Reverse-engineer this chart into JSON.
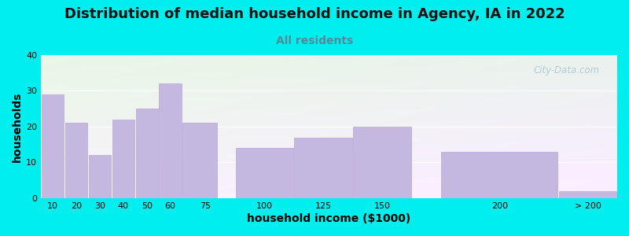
{
  "title": "Distribution of median household income in Agency, IA in 2022",
  "subtitle": "All residents",
  "xlabel": "household income ($1000)",
  "ylabel": "households",
  "bg_color": "#00EEEE",
  "bar_color": "#c5b8e0",
  "bar_edge_color": "#b8a8d8",
  "categories": [
    "10",
    "20",
    "30",
    "40",
    "50",
    "60",
    "75",
    "100",
    "125",
    "150",
    "200",
    "> 200"
  ],
  "values": [
    29,
    21,
    12,
    22,
    25,
    32,
    21,
    14,
    17,
    20,
    13,
    2
  ],
  "bar_lefts": [
    5,
    15,
    25,
    35,
    45,
    55,
    65,
    87.5,
    112.5,
    137.5,
    175,
    225
  ],
  "bar_widths": [
    10,
    10,
    10,
    10,
    10,
    10,
    15,
    25,
    25,
    25,
    50,
    25
  ],
  "xlim": [
    5,
    250
  ],
  "ylim": [
    0,
    40
  ],
  "yticks": [
    0,
    10,
    20,
    30,
    40
  ],
  "xtick_positions": [
    10,
    20,
    30,
    40,
    50,
    60,
    75,
    100,
    125,
    150,
    200,
    237.5
  ],
  "xtick_labels": [
    "10",
    "20",
    "30",
    "40",
    "50",
    "60",
    "75",
    "100",
    "125",
    "150",
    "200",
    "> 200"
  ],
  "watermark": "City-Data.com",
  "title_fontsize": 13,
  "subtitle_fontsize": 10,
  "subtitle_color": "#558899",
  "axis_label_fontsize": 10,
  "tick_fontsize": 8
}
